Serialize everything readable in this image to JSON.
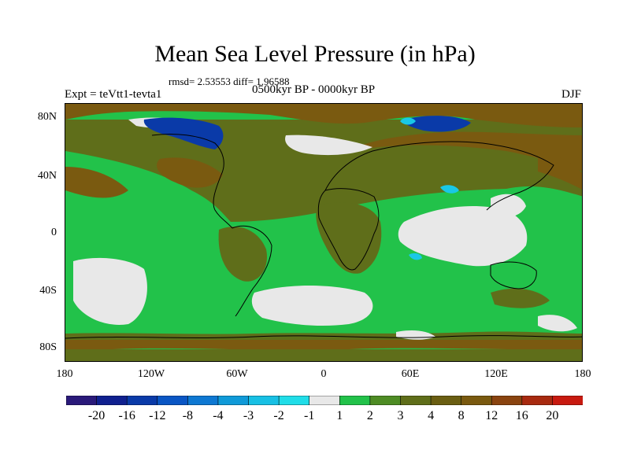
{
  "title": "Mean Sea Level Pressure (in hPa)",
  "stats_line": "rmsd= 2.53553 diff= 1.96588",
  "period": "0500kyr BP - 0000kyr BP",
  "experiment": "Expt = teVtt1-tevta1",
  "season": "DJF",
  "map": {
    "lat_labels": [
      "80N",
      "40N",
      "0",
      "40S",
      "80S"
    ],
    "lon_labels": [
      "180",
      "120W",
      "60W",
      "0",
      "60E",
      "120E",
      "180"
    ],
    "colors": {
      "green": "#22c24a",
      "olive": "#5f6e1a",
      "brown": "#7a5a10",
      "light": "#e8e8e8",
      "darkblue": "#0a3aa8",
      "cyan": "#19c8e6",
      "coastline": "#000000"
    }
  },
  "colorbar": {
    "colors": [
      "#2a1a7a",
      "#10208f",
      "#0a3aa8",
      "#0a56c4",
      "#0e78d2",
      "#109ad8",
      "#18c0e4",
      "#20dde8",
      "#e8e8e8",
      "#22c24a",
      "#4e8c24",
      "#5f6e1a",
      "#6a5e12",
      "#7a5a10",
      "#8a4410",
      "#a82a10",
      "#c81a10"
    ],
    "labels": [
      "-20",
      "-16",
      "-12",
      "-8",
      "-4",
      "-3",
      "-2",
      "-1",
      "1",
      "2",
      "3",
      "4",
      "8",
      "12",
      "16",
      "20"
    ]
  }
}
